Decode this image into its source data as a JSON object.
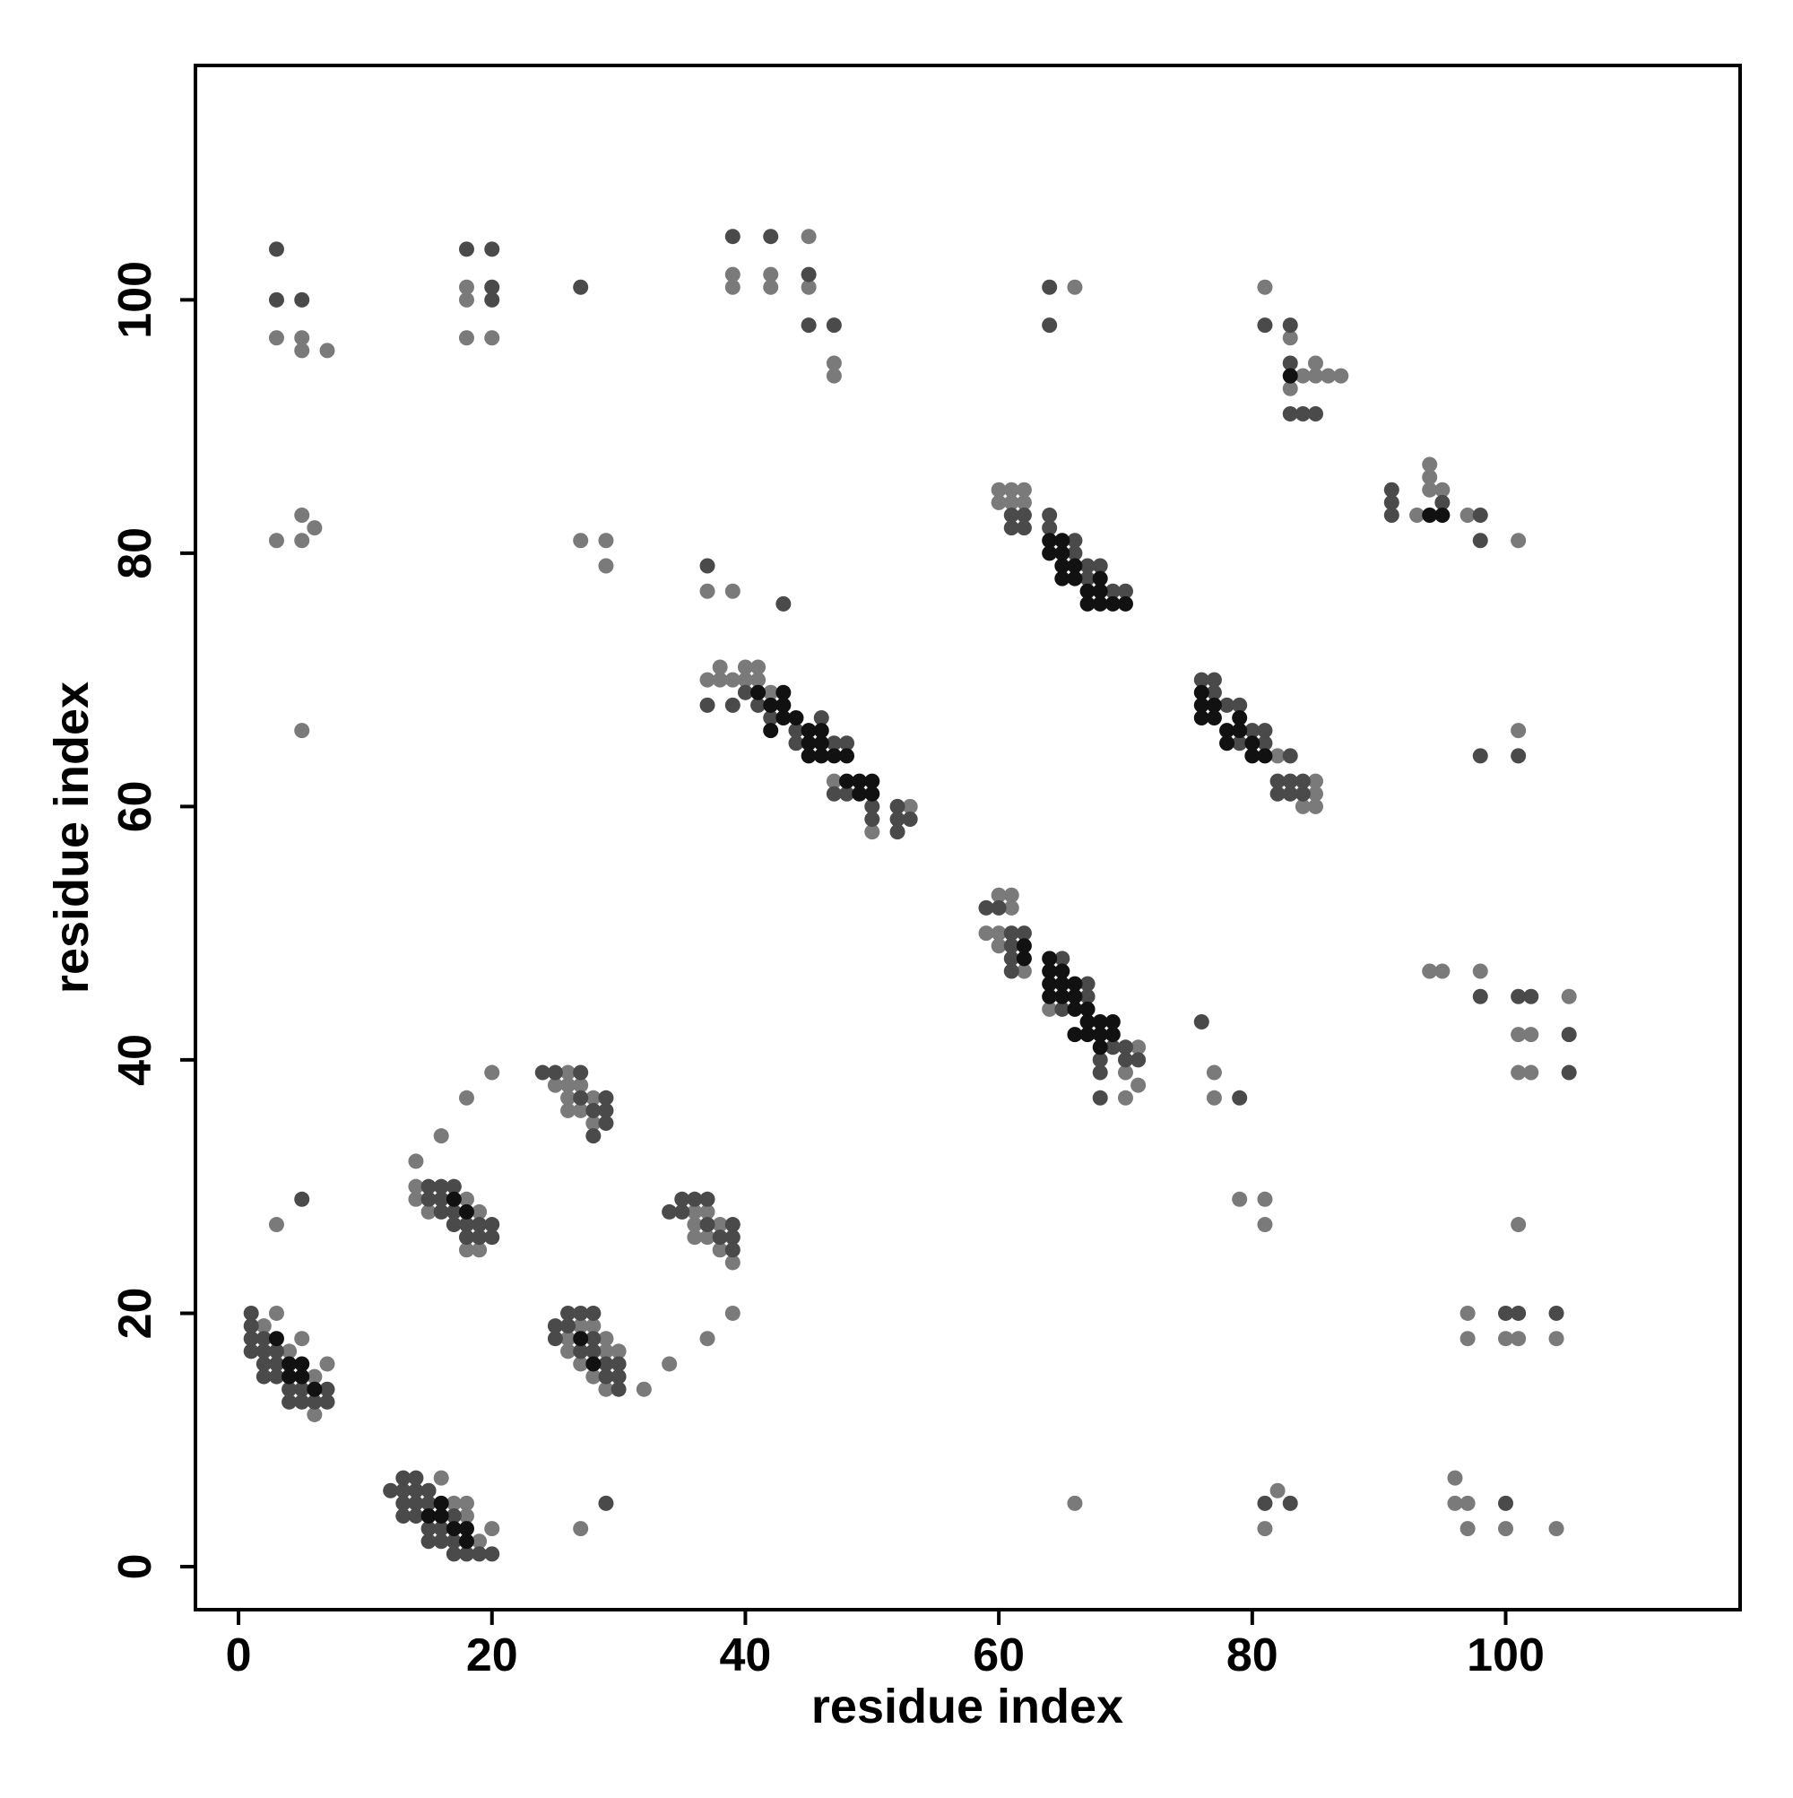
{
  "chart_data": {
    "type": "scatter",
    "x_label": "residue index",
    "y_label": "residue index",
    "xlim": [
      -3.4,
      118.5
    ],
    "ylim": [
      -3.4,
      118.5
    ],
    "xticks": [
      0,
      20,
      40,
      60,
      80,
      100
    ],
    "yticks": [
      0,
      20,
      40,
      60,
      80,
      100
    ],
    "series": [
      {
        "color": "#7a7a7a",
        "x": [
          2,
          3,
          4,
          5,
          6,
          6,
          7,
          3,
          16,
          17,
          18,
          18,
          19,
          20,
          26,
          26,
          27,
          27,
          28,
          28,
          29,
          29,
          29,
          30,
          32,
          34,
          37,
          39,
          14,
          14,
          14,
          15,
          18,
          18,
          19,
          19,
          16,
          18,
          20,
          25,
          26,
          26,
          26,
          26,
          27,
          27,
          28,
          28,
          36,
          36,
          36,
          37,
          37,
          38,
          38,
          39,
          37,
          38,
          38,
          39,
          40,
          40,
          41,
          41,
          42,
          47,
          50,
          53,
          60,
          59,
          60,
          60,
          61,
          61,
          62,
          64,
          70,
          70,
          71,
          71,
          60,
          60,
          61,
          61,
          62,
          62,
          85,
          85,
          85,
          84,
          82,
          3,
          5,
          5,
          7,
          18,
          18,
          18,
          20,
          39,
          42,
          39,
          42,
          45,
          45,
          47,
          47,
          66,
          81,
          83,
          84,
          85,
          85,
          86,
          87,
          83,
          93,
          94,
          94,
          94,
          95,
          97,
          101,
          101,
          3,
          5,
          5,
          6,
          5,
          27,
          29,
          29,
          37,
          39,
          27,
          66,
          94,
          95,
          98,
          102,
          101,
          101,
          102,
          105,
          77,
          77,
          79,
          81,
          81,
          101,
          97,
          97,
          100,
          101,
          104,
          96,
          96,
          97,
          97,
          100,
          104,
          82,
          81
        ],
        "values": [
          19,
          20,
          17,
          18,
          15,
          12,
          16,
          27,
          7,
          5,
          5,
          4,
          2,
          3,
          18,
          17,
          19,
          16,
          19,
          15,
          18,
          17,
          14,
          17,
          14,
          16,
          18,
          20,
          32,
          30,
          29,
          28,
          29,
          25,
          28,
          25,
          34,
          37,
          39,
          38,
          39,
          38,
          37,
          36,
          38,
          36,
          37,
          35,
          28,
          27,
          26,
          28,
          26,
          27,
          25,
          24,
          70,
          71,
          70,
          70,
          71,
          70,
          71,
          70,
          69,
          62,
          58,
          60,
          50,
          50,
          53,
          49,
          53,
          52,
          47,
          44,
          39,
          37,
          41,
          38,
          85,
          84,
          85,
          84,
          85,
          84,
          62,
          61,
          60,
          60,
          64,
          97,
          97,
          96,
          96,
          101,
          100,
          97,
          97,
          102,
          102,
          101,
          101,
          105,
          101,
          95,
          94,
          101,
          101,
          97,
          94,
          95,
          94,
          94,
          94,
          93,
          83,
          87,
          86,
          85,
          85,
          83,
          81,
          66,
          81,
          83,
          81,
          82,
          66,
          81,
          81,
          79,
          77,
          77,
          3,
          5,
          47,
          47,
          47,
          42,
          42,
          39,
          39,
          45,
          39,
          37,
          29,
          29,
          27,
          27,
          20,
          18,
          18,
          18,
          18,
          7,
          5,
          5,
          3,
          3,
          3,
          6,
          3
        ]
      },
      {
        "color": "#4a4a4a",
        "x": [
          1,
          1,
          1,
          1,
          2,
          2,
          2,
          2,
          3,
          3,
          4,
          4,
          5,
          5,
          6,
          7,
          7,
          3,
          12,
          13,
          13,
          13,
          13,
          14,
          14,
          14,
          14,
          15,
          15,
          15,
          15,
          16,
          16,
          17,
          17,
          17,
          18,
          19,
          20,
          25,
          25,
          26,
          26,
          27,
          27,
          28,
          28,
          28,
          29,
          29,
          30,
          30,
          30,
          15,
          15,
          16,
          16,
          16,
          17,
          17,
          17,
          18,
          18,
          19,
          19,
          20,
          20,
          24,
          25,
          27,
          27,
          28,
          28,
          29,
          29,
          29,
          34,
          35,
          35,
          36,
          37,
          37,
          38,
          39,
          39,
          39,
          37,
          39,
          40,
          41,
          42,
          44,
          44,
          46,
          47,
          47,
          48,
          48,
          50,
          50,
          52,
          52,
          52,
          53,
          59,
          60,
          61,
          61,
          61,
          61,
          62,
          65,
          65,
          67,
          67,
          68,
          68,
          68,
          69,
          70,
          70,
          71,
          61,
          61,
          62,
          62,
          64,
          64,
          66,
          66,
          67,
          67,
          68,
          69,
          70,
          76,
          77,
          77,
          78,
          79,
          79,
          80,
          81,
          81,
          82,
          82,
          83,
          83,
          83,
          84,
          84,
          5,
          3,
          5,
          3,
          18,
          20,
          20,
          20,
          27,
          39,
          42,
          45,
          45,
          47,
          37,
          43,
          64,
          64,
          81,
          83,
          83,
          83,
          84,
          85,
          91,
          91,
          91,
          95,
          98,
          98,
          98,
          101,
          101,
          102,
          105,
          105,
          76,
          79,
          100,
          101,
          104,
          100,
          81,
          83,
          29,
          98
        ],
        "values": [
          20,
          19,
          18,
          17,
          18,
          17,
          16,
          15,
          16,
          15,
          14,
          13,
          14,
          13,
          13,
          14,
          13,
          17,
          6,
          7,
          6,
          5,
          4,
          7,
          6,
          5,
          4,
          6,
          5,
          3,
          2,
          3,
          2,
          4,
          2,
          1,
          1,
          1,
          1,
          19,
          18,
          20,
          19,
          20,
          17,
          20,
          18,
          17,
          16,
          15,
          16,
          15,
          14,
          30,
          29,
          30,
          29,
          28,
          30,
          28,
          27,
          27,
          26,
          27,
          26,
          27,
          26,
          39,
          39,
          39,
          37,
          36,
          34,
          37,
          36,
          35,
          28,
          29,
          28,
          29,
          29,
          27,
          26,
          27,
          26,
          25,
          68,
          68,
          69,
          68,
          67,
          66,
          65,
          67,
          65,
          61,
          65,
          61,
          60,
          59,
          60,
          59,
          58,
          59,
          52,
          52,
          50,
          49,
          48,
          47,
          50,
          48,
          44,
          46,
          45,
          40,
          39,
          37,
          41,
          41,
          40,
          40,
          83,
          82,
          83,
          82,
          83,
          82,
          81,
          80,
          79,
          78,
          79,
          77,
          77,
          70,
          70,
          69,
          68,
          68,
          65,
          66,
          66,
          65,
          62,
          61,
          64,
          62,
          61,
          62,
          61,
          29,
          100,
          100,
          104,
          104,
          104,
          101,
          100,
          101,
          105,
          105,
          102,
          98,
          98,
          79,
          76,
          101,
          98,
          98,
          98,
          95,
          91,
          91,
          91,
          85,
          84,
          83,
          84,
          83,
          81,
          64,
          64,
          45,
          45,
          42,
          39,
          43,
          37,
          20,
          20,
          20,
          5,
          5,
          5,
          5,
          45
        ]
      },
      {
        "color": "#111111",
        "x": [
          3,
          4,
          4,
          5,
          5,
          6,
          15,
          16,
          16,
          17,
          18,
          18,
          28,
          27,
          17,
          18,
          41,
          42,
          42,
          43,
          43,
          43,
          44,
          45,
          45,
          45,
          46,
          46,
          46,
          47,
          48,
          48,
          49,
          49,
          50,
          50,
          62,
          62,
          64,
          64,
          64,
          64,
          65,
          65,
          65,
          66,
          66,
          66,
          66,
          67,
          67,
          67,
          68,
          68,
          68,
          69,
          69,
          64,
          64,
          65,
          65,
          65,
          65,
          66,
          66,
          67,
          67,
          68,
          68,
          68,
          69,
          70,
          76,
          76,
          76,
          77,
          77,
          78,
          78,
          79,
          79,
          80,
          80,
          81,
          83,
          94,
          95
        ],
        "values": [
          18,
          16,
          15,
          16,
          15,
          14,
          4,
          5,
          4,
          3,
          3,
          2,
          16,
          18,
          29,
          28,
          69,
          68,
          66,
          69,
          68,
          67,
          67,
          66,
          65,
          64,
          66,
          65,
          64,
          64,
          64,
          62,
          62,
          61,
          62,
          61,
          49,
          48,
          48,
          47,
          46,
          45,
          47,
          46,
          45,
          46,
          45,
          44,
          42,
          44,
          43,
          42,
          43,
          42,
          41,
          43,
          42,
          81,
          80,
          81,
          80,
          79,
          78,
          79,
          78,
          77,
          76,
          78,
          77,
          76,
          76,
          76,
          69,
          68,
          67,
          68,
          67,
          66,
          65,
          67,
          66,
          65,
          64,
          64,
          94,
          83,
          83
        ]
      }
    ]
  }
}
